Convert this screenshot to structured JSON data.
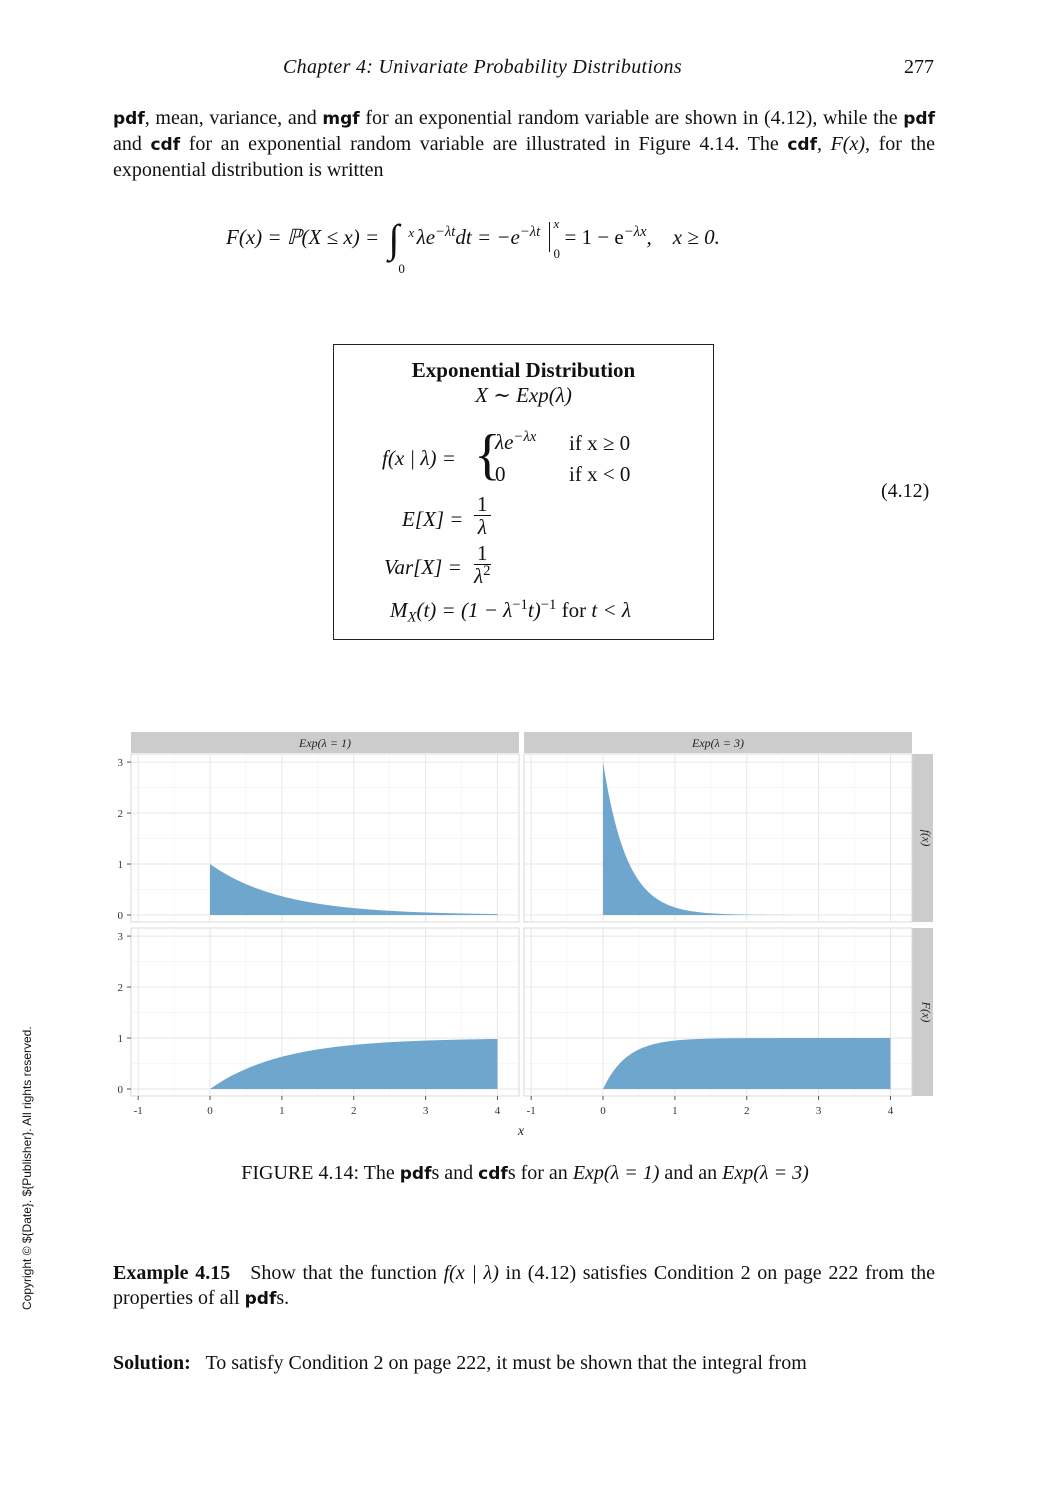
{
  "header": {
    "title": "Chapter  4:   Univariate Probability Distributions",
    "page_number": "277"
  },
  "intro": {
    "pdf": "pdf",
    "t1": ", mean, variance, and ",
    "mgf": "mgf",
    "t2": " for an exponential random variable are shown in (4.12), while the ",
    "pdf2": "pdf",
    "t3": " and ",
    "cdf": "cdf",
    "t4": " for an exponential random variable are illustrated in Figure 4.14.  The ",
    "cdf2": "cdf",
    "t5": ", ",
    "Fx": "F(x)",
    "t6": ", for the exponential distribution is written"
  },
  "cdf_equation": {
    "lhs": "F(x) = ℙ(X ≤ x) =",
    "int_upper": "x",
    "int_lower": "0",
    "integrand": "λe",
    "integrand_exp": "−λt",
    "dt": "dt = −e",
    "eval_exp": "−λt",
    "bar_upper": "x",
    "bar_lower": "0",
    "rhs": "= 1 − e",
    "rhs_exp": "−λx",
    "cond": ",    x ≥ 0."
  },
  "box": {
    "title": "Exponential Distribution",
    "subtitle": "X ∼ Exp(λ)",
    "pdf_lhs": "f(x | λ) =",
    "case1_val": "λe",
    "case1_exp": "−λx",
    "case1_cond": "if x ≥ 0",
    "case2_val": "0",
    "case2_cond": "if x < 0",
    "mean_lhs": "E[X] =",
    "mean_num": "1",
    "mean_den": "λ",
    "var_lhs": "Var[X] =",
    "var_num": "1",
    "var_den": "λ",
    "var_den_exp": "2",
    "mgf_M": "M",
    "mgf_sub": "X",
    "mgf_arg": "(t) = (1 − λ",
    "mgf_inner_exp": "−1",
    "mgf_t": "t)",
    "mgf_outer_exp": "−1",
    "mgf_for": " for ",
    "mgf_cond": "t < λ"
  },
  "equation_number": "(4.12)",
  "chart_data": {
    "type": "area",
    "x_label": "x",
    "columns": [
      "Exp(λ = 1)",
      "Exp(λ = 3)"
    ],
    "rows": [
      "f(x)",
      "F(x)"
    ],
    "xlim": [
      -1.1,
      4.3
    ],
    "ylim": [
      0,
      3.1
    ],
    "x_ticks": [
      -1,
      0,
      1,
      2,
      3,
      4
    ],
    "y_ticks": [
      0,
      1,
      2,
      3
    ],
    "color": "#6ea6cd",
    "strip_color": "#cccccc",
    "grid": true,
    "panels": [
      {
        "row": "f(x)",
        "col": "Exp(λ = 1)",
        "function": "pdf",
        "rate": 1,
        "x_range": [
          0,
          4
        ]
      },
      {
        "row": "f(x)",
        "col": "Exp(λ = 3)",
        "function": "pdf",
        "rate": 3,
        "x_range": [
          0,
          4
        ]
      },
      {
        "row": "F(x)",
        "col": "Exp(λ = 1)",
        "function": "cdf",
        "rate": 1,
        "x_range": [
          0,
          4
        ]
      },
      {
        "row": "F(x)",
        "col": "Exp(λ = 3)",
        "function": "cdf",
        "rate": 3,
        "x_range": [
          0,
          4
        ]
      }
    ]
  },
  "caption": {
    "pre": "FIGURE 4.14: The ",
    "pdf": "pdf",
    "m1": "s and ",
    "cdf": "cdf",
    "m2": "s for an ",
    "e1": "Exp(λ = 1)",
    "m3": " and an ",
    "e2": "Exp(λ = 3)"
  },
  "example": {
    "label": "Example 4.15",
    "t1": "   Show that the function ",
    "fx": "f(x | λ)",
    "t2": " in (4.12) satisfies Condition 2 on page 222 from the properties of all ",
    "pdf": "pdf",
    "t3": "s."
  },
  "solution": {
    "label": "Solution:",
    "text": "   To satisfy Condition 2 on page 222, it must be shown that the integral from"
  },
  "copyright": "Copyright © ${Date}. ${Publisher}. All rights reserved."
}
